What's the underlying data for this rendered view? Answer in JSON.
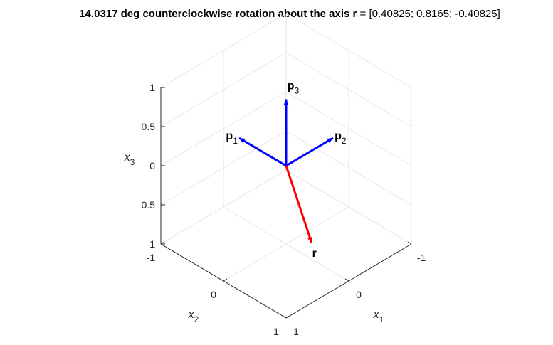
{
  "chart_data": {
    "type": "3d-vector-plot",
    "title": {
      "bold_part": "14.0317 deg counterclockwise rotation about the axis ",
      "axis_symbol": "r",
      "rest": " = [0.40825; 0.8165; -0.40825]"
    },
    "axes": {
      "x1": {
        "label": "x",
        "sub": "1",
        "range": [
          -1,
          1
        ],
        "ticks": [
          "-1",
          "0",
          "1"
        ]
      },
      "x2": {
        "label": "x",
        "sub": "2",
        "range": [
          -1,
          1
        ],
        "ticks": [
          "-1",
          "0",
          "1"
        ]
      },
      "x3": {
        "label": "x",
        "sub": "3",
        "range": [
          -1,
          1
        ],
        "ticks": [
          "-1",
          "-0.5",
          "0",
          "0.5",
          "1"
        ]
      }
    },
    "grid": true,
    "view": "isometric",
    "vectors": [
      {
        "label": "p",
        "sub": "1",
        "color": "#0000ff",
        "components": [
          0,
          -0.75,
          0
        ]
      },
      {
        "label": "p",
        "sub": "2",
        "color": "#0000ff",
        "components": [
          -0.75,
          0,
          0
        ]
      },
      {
        "label": "p",
        "sub": "3",
        "color": "#0000ff",
        "components": [
          0,
          0,
          0.85
        ]
      },
      {
        "label": "r",
        "sub": "",
        "color": "#ff0000",
        "components": [
          0.40825,
          0.8165,
          -0.40825
        ]
      }
    ]
  }
}
